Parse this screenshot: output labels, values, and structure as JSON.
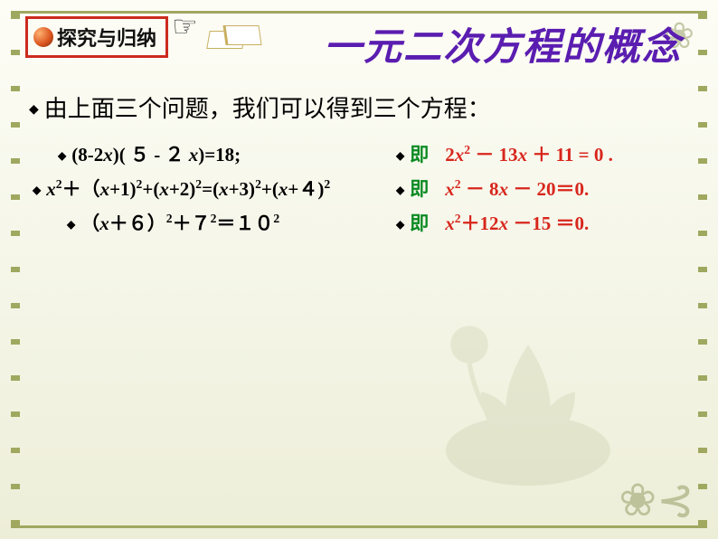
{
  "tag_label": "探究与归纳",
  "title": "一元二次方程的概念",
  "intro": "由上面三个问题，我们可以得到三个方程：",
  "ji_label": "即",
  "equations": {
    "left1_html": "(8-2<span class='x'>x</span>)( ５ - ２ <span class='x'>x</span>)=18;",
    "left2_html": "<span class='x'>x</span><sup>2</sup>＋（<span class='x'>x</span>+1)<sup>2</sup>+(<span class='x'>x</span>+2)<sup>2</sup>=(<span class='x'>x</span>+3)<sup>2</sup>+(<span class='x'>x</span>+４)<sup>2</sup>",
    "left3_html": "（<span class='x'>x</span>＋６）<sup>2</sup>＋７<sup>2</sup>＝１０<sup>2</sup>",
    "right1_html": "2<span class='x'>x</span><sup>2</sup> － 13<span class='x'>x</span> ＋ 11 = 0 .",
    "right2_html": "<span class='x'>x</span><sup>2</sup> － 8<span class='x'>x</span> － 20＝0.",
    "right3_html": "<span class='x'>x</span><sup>2</sup>＋12<span class='x'>x</span> －15 ＝0."
  },
  "colors": {
    "title_color": "#5a1db0",
    "box_border": "#cc2a1f",
    "ji_color": "#0a8a22",
    "red": "#d8261c",
    "frame": "#a0a860"
  }
}
